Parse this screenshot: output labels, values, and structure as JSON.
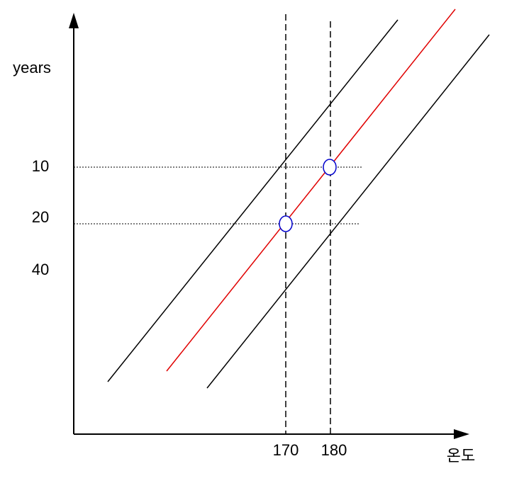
{
  "y_axis": {
    "label": "years",
    "ticks": [
      10,
      20,
      40
    ]
  },
  "x_axis": {
    "label": "온도",
    "ticks": [
      170,
      180
    ]
  }
}
